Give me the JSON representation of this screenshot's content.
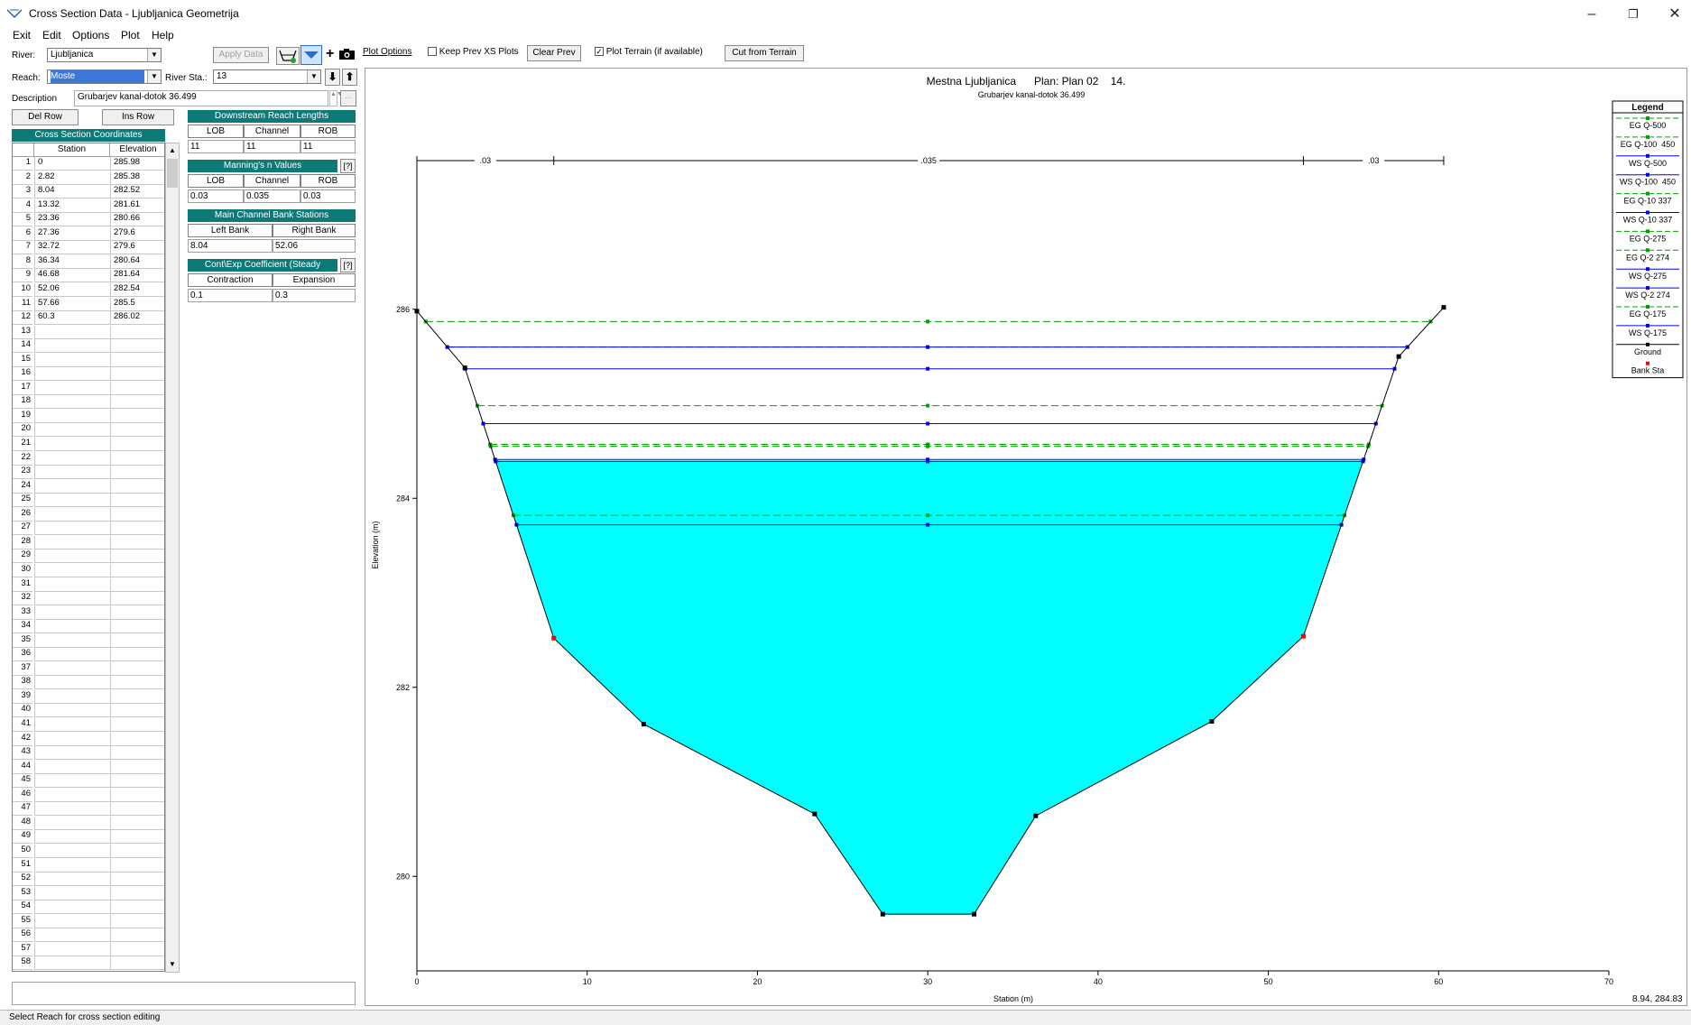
{
  "window": {
    "title": "Cross Section Data - Ljubljanica Geometrija",
    "minimize": "–",
    "restore": "❐",
    "close": "✕"
  },
  "menu": [
    "Exit",
    "Edit",
    "Options",
    "Plot",
    "Help"
  ],
  "river": {
    "label": "River:",
    "value": "Ljubljanica"
  },
  "reach": {
    "label": "Reach:",
    "value": "Moste"
  },
  "river_sta": {
    "label": "River Sta.:",
    "value": "13"
  },
  "apply_data_label": "Apply Data",
  "description": {
    "label": "Description",
    "value": "Grubarjev kanal-dotok 36.499"
  },
  "del_row_label": "Del Row",
  "ins_row_label": "Ins Row",
  "xs_coords": {
    "title": "Cross Section Coordinates",
    "col_station": "Station",
    "col_elevation": "Elevation",
    "row_numbers": [
      "1",
      "2",
      "3",
      "4",
      "5",
      "6",
      "7",
      "8",
      "9",
      "10",
      "11",
      "12",
      "13",
      "14",
      "15",
      "16",
      "17",
      "18",
      "19",
      "20",
      "21",
      "22",
      "23",
      "24",
      "25",
      "26",
      "27",
      "28",
      "29",
      "30",
      "31",
      "32",
      "33",
      "34",
      "35",
      "36",
      "37",
      "38",
      "39",
      "40",
      "41",
      "42",
      "43",
      "44",
      "45",
      "46",
      "47",
      "48",
      "49",
      "50",
      "51",
      "52",
      "53",
      "54",
      "55",
      "56",
      "57",
      "58"
    ],
    "stations": [
      "0",
      "2.82",
      "8.04",
      "13.32",
      "23.36",
      "27.36",
      "32.72",
      "36.34",
      "46.68",
      "52.06",
      "57.66",
      "60.3"
    ],
    "elevations": [
      "285.98",
      "285.38",
      "282.52",
      "281.61",
      "280.66",
      "279.6",
      "279.6",
      "280.64",
      "281.64",
      "282.54",
      "285.5",
      "286.02"
    ]
  },
  "reach_lengths": {
    "title": "Downstream Reach Lengths",
    "headers": [
      "LOB",
      "Channel",
      "ROB"
    ],
    "values": [
      "11",
      "11",
      "11"
    ]
  },
  "mannings": {
    "title": "Manning's n Values",
    "headers": [
      "LOB",
      "Channel",
      "ROB"
    ],
    "values": [
      "0.03",
      "0.035",
      "0.03"
    ]
  },
  "bank_stations": {
    "title": "Main Channel Bank Stations",
    "headers": [
      "Left Bank",
      "Right Bank"
    ],
    "values": [
      "8.04",
      "52.06"
    ]
  },
  "contraction": {
    "title": "Cont\\Exp Coefficient (Steady",
    "headers": [
      "Contraction",
      "Expansion"
    ],
    "values": [
      "0.1",
      "0.3"
    ]
  },
  "plot_toolbar": {
    "plot_options": "Plot Options",
    "keep_prev": "Keep Prev XS Plots",
    "clear_prev": "Clear Prev",
    "plot_terrain": "Plot Terrain (if available)",
    "cut_from_terrain": "Cut from Terrain"
  },
  "status_text": "Select Reach for cross section editing",
  "cursor_readout": "8.94, 284.83",
  "colors": {
    "water": "#00ffff",
    "eg_line": "#00a000",
    "ws_line": "#0000ff",
    "bank_sta": "#ff0000",
    "ground": "#000000",
    "teal_header": "#0e7a78"
  },
  "chart_data": {
    "type": "line",
    "title": "Mestna Ljubljanica      Plan: Plan 02    14.",
    "subtitle": "Grubarjev kanal-dotok 36.499",
    "xlabel": "Station (m)",
    "ylabel": "Elevation (m)",
    "xlim": [
      0,
      70
    ],
    "ylim": [
      279,
      287
    ],
    "x_ticks": [
      "0",
      "10",
      "20",
      "30",
      "40",
      "50",
      "60",
      "70"
    ],
    "y_ticks": [
      "280",
      "282",
      "284",
      "286"
    ],
    "mannings_labels": [
      ".03",
      ".035",
      ".03"
    ],
    "ground": {
      "x": [
        0,
        2.82,
        8.04,
        13.32,
        23.36,
        27.36,
        32.72,
        36.34,
        46.68,
        52.06,
        57.66,
        60.3
      ],
      "y": [
        285.98,
        285.38,
        282.52,
        281.61,
        280.66,
        279.6,
        279.6,
        280.64,
        281.64,
        282.54,
        285.5,
        286.02
      ]
    },
    "bank_stations": [
      8.04,
      52.06
    ],
    "water_surface_fill": 284.4,
    "profiles": [
      {
        "name": "EG Q-500",
        "kind": "EG",
        "y": 285.87
      },
      {
        "name": "EG Q-100  450",
        "kind": "EG",
        "y": 285.6
      },
      {
        "name": "WS Q-500",
        "kind": "WS",
        "y": 285.6
      },
      {
        "name": "WS Q-100  450",
        "kind": "WS",
        "y": 285.37
      },
      {
        "name": "EG Q-10 337",
        "kind": "EG",
        "y": 284.98
      },
      {
        "name": "WS Q-10 337",
        "kind": "WS",
        "y": 284.79
      },
      {
        "name": "EG Q-275",
        "kind": "EG",
        "y": 284.57
      },
      {
        "name": "EG Q-2 274",
        "kind": "EG",
        "y": 284.55
      },
      {
        "name": "WS Q-275",
        "kind": "WS",
        "y": 284.41
      },
      {
        "name": "WS Q-2 274",
        "kind": "WS",
        "y": 284.39
      },
      {
        "name": "EG Q-175",
        "kind": "EG",
        "y": 283.82
      },
      {
        "name": "WS Q-175",
        "kind": "WS",
        "y": 283.72
      }
    ],
    "legend": {
      "title": "Legend",
      "position": "top-right",
      "entries": [
        "EG Q-500",
        "EG Q-100  450",
        "WS Q-500",
        "WS Q-100  450",
        "EG Q-10 337",
        "WS Q-10 337",
        "EG Q-275",
        "EG Q-2 274",
        "WS Q-275",
        "WS Q-2 274",
        "EG Q-175",
        "WS Q-175",
        "Ground",
        "Bank Sta"
      ]
    }
  }
}
